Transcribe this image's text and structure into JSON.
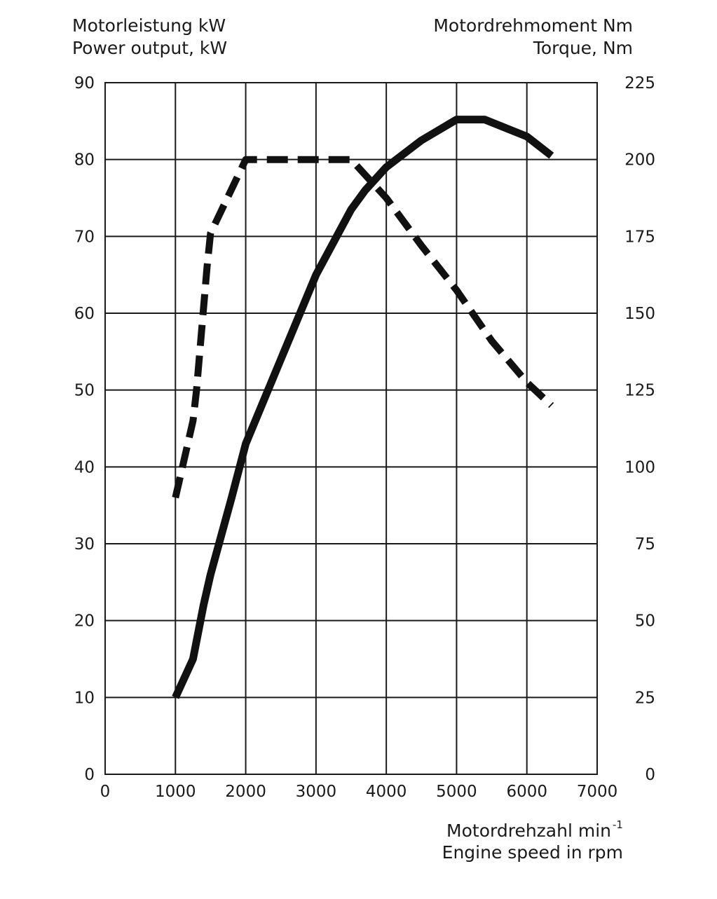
{
  "chart_data": {
    "type": "line",
    "left_axis_label": [
      "Motorleistung kW",
      "Power output, kW"
    ],
    "right_axis_label": [
      "Motordrehmoment Nm",
      "Torque, Nm"
    ],
    "x_axis_label": [
      "Motordrehzahl min",
      "Engine speed in rpm"
    ],
    "x_axis_label_superscript": "-1",
    "xlim": [
      0,
      7000
    ],
    "ylim_left": [
      0,
      90
    ],
    "ylim_right": [
      0,
      225
    ],
    "x_ticks": [
      "0",
      "1000",
      "2000",
      "3000",
      "4000",
      "5000",
      "6000",
      "7000"
    ],
    "y_left_ticks": [
      "0",
      "10",
      "20",
      "30",
      "40",
      "50",
      "60",
      "70",
      "80",
      "90"
    ],
    "y_right_ticks": [
      "0",
      "25",
      "50",
      "75",
      "100",
      "125",
      "150",
      "175",
      "200",
      "225"
    ],
    "grid": true,
    "series": [
      {
        "style": "solid",
        "axis": "left",
        "x": [
          1000,
          1250,
          1400,
          1500,
          1800,
          2000,
          2500,
          3000,
          3500,
          3700,
          4000,
          4500,
          5000,
          5400,
          6000,
          6350
        ],
        "values": [
          10,
          15,
          22,
          26,
          36,
          43,
          54,
          65,
          73.5,
          76,
          79,
          82.5,
          85.2,
          85.2,
          83,
          80.5
        ]
      },
      {
        "style": "dashed",
        "axis": "right",
        "x": [
          1000,
          1250,
          1300,
          1450,
          1500,
          2000,
          2500,
          3000,
          3500,
          4000,
          4500,
          5000,
          5500,
          6000,
          6350
        ],
        "values": [
          90,
          115,
          125,
          165,
          176,
          200,
          200,
          200,
          200,
          187.5,
          172,
          157.5,
          141,
          127.5,
          120
        ]
      }
    ]
  }
}
